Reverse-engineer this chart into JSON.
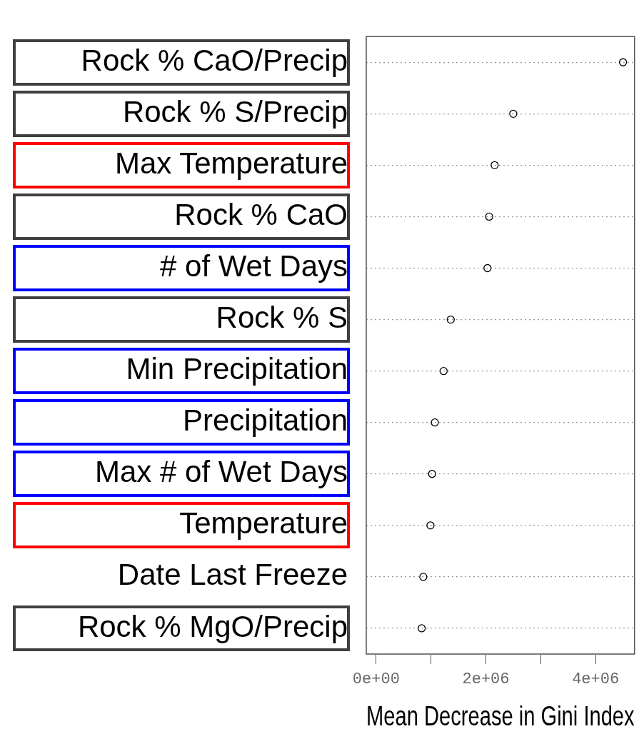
{
  "chart_data": {
    "type": "scatter",
    "orientation": "horizontal",
    "xlabel": "Mean Decrease in Gini Index",
    "categories": [
      "Rock % CaO/Precip",
      "Rock % S/Precip",
      "Max Temperature",
      "Rock % CaO",
      "# of Wet Days",
      "Rock % S",
      "Min Precipitation",
      "Precipitation",
      "Max # of Wet Days",
      "Temperature",
      "Date Last Freeze",
      "Rock % MgO/Precip"
    ],
    "values": [
      4500000,
      2500000,
      2160000,
      2060000,
      2030000,
      1360000,
      1230000,
      1070000,
      1020000,
      990000,
      860000,
      830000
    ],
    "color": "#000000",
    "marker": "circle",
    "grid": "y",
    "xlim": [
      -180000,
      4710000
    ],
    "xticks": [
      {
        "value": 0,
        "label": "0e+00"
      },
      {
        "value": 1000000,
        "label": null
      },
      {
        "value": 2000000,
        "label": "2e+06"
      },
      {
        "value": 3000000,
        "label": null
      },
      {
        "value": 4000000,
        "label": "4e+06"
      }
    ]
  }
}
